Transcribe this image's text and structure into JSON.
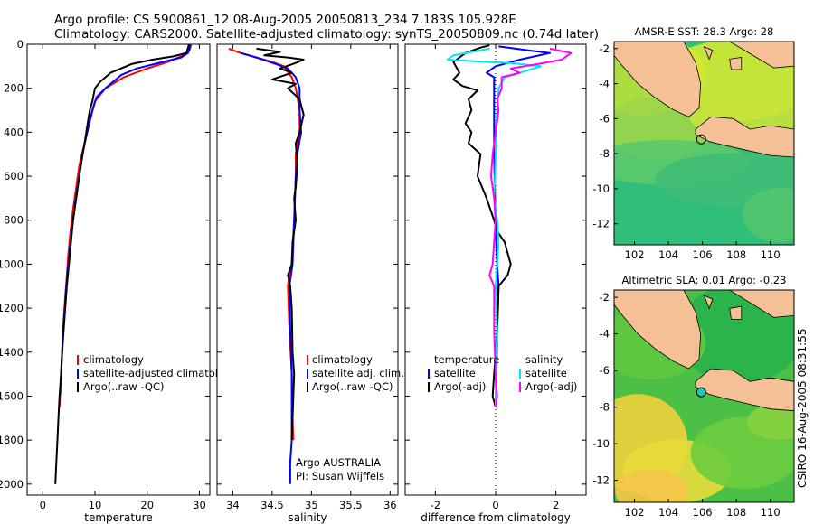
{
  "header": {
    "line1": "Argo profile: CS 5900861_12 08-Aug-2005 20050813_234 7.183S 105.928E",
    "line2": "Climatology: CARS2000. Satellite-adjusted climatology: synTS_20050809.nc (0.74d later)"
  },
  "stamp": "CSIRO 16-Aug-2005 08:31:55",
  "colors": {
    "climatology": "#ff0000",
    "satellite": "#0000ff",
    "argo": "#000000",
    "salinity_satellite": "#00e5ee",
    "salinity_argo": "#ff00ff",
    "land": "#f5c095"
  },
  "chart_data": [
    {
      "type": "line",
      "xlabel": "temperature",
      "ylim": [
        2050,
        0
      ],
      "xlim": [
        -3,
        32
      ],
      "xticks": [
        "0",
        "10",
        "20",
        "30"
      ],
      "yticks": [
        "0",
        "200",
        "400",
        "600",
        "800",
        "1000",
        "1200",
        "1400",
        "1600",
        "1800",
        "2000"
      ],
      "legend_placement": "lower-right",
      "series": [
        {
          "name": "climatology",
          "color": "#ff0000",
          "points": [
            [
              28.4,
              0
            ],
            [
              28.2,
              20
            ],
            [
              27.8,
              40
            ],
            [
              26,
              60
            ],
            [
              24,
              80
            ],
            [
              20,
              110
            ],
            [
              15.5,
              150
            ],
            [
              12,
              200
            ],
            [
              10,
              260
            ],
            [
              9,
              350
            ],
            [
              8,
              450
            ],
            [
              7,
              550
            ],
            [
              6.4,
              650
            ],
            [
              5.8,
              750
            ],
            [
              5.3,
              850
            ],
            [
              4.9,
              950
            ],
            [
              4.6,
              1050
            ],
            [
              4.3,
              1150
            ],
            [
              4,
              1250
            ],
            [
              3.8,
              1350
            ],
            [
              3.6,
              1450
            ],
            [
              3.4,
              1550
            ],
            [
              3.2,
              1650
            ]
          ]
        },
        {
          "name": "satellite-adjusted climatology",
          "color": "#0000ff",
          "points": [
            [
              28.3,
              0
            ],
            [
              28.1,
              20
            ],
            [
              27.8,
              40
            ],
            [
              26.5,
              60
            ],
            [
              23,
              80
            ],
            [
              18,
              110
            ],
            [
              15,
              140
            ],
            [
              12,
              200
            ],
            [
              10.3,
              240
            ],
            [
              9.5,
              300
            ],
            [
              8.5,
              400
            ],
            [
              7.6,
              500
            ],
            [
              7,
              600
            ],
            [
              6.3,
              700
            ],
            [
              5.8,
              800
            ],
            [
              5.3,
              900
            ],
            [
              4.9,
              1000
            ],
            [
              4.5,
              1100
            ],
            [
              4.2,
              1200
            ],
            [
              3.9,
              1300
            ],
            [
              3.7,
              1400
            ],
            [
              3.5,
              1500
            ],
            [
              3.3,
              1600
            ]
          ]
        },
        {
          "name": "Argo(..raw -QC)",
          "color": "#000000",
          "points": [
            [
              28,
              0
            ],
            [
              27.9,
              10
            ],
            [
              27.5,
              40
            ],
            [
              25,
              55
            ],
            [
              21,
              70
            ],
            [
              17,
              90
            ],
            [
              13,
              130
            ],
            [
              11,
              170
            ],
            [
              10,
              200
            ],
            [
              9.5,
              260
            ],
            [
              9,
              300
            ],
            [
              8.6,
              360
            ],
            [
              8,
              450
            ],
            [
              7.5,
              520
            ],
            [
              7,
              600
            ],
            [
              6.4,
              700
            ],
            [
              5.8,
              800
            ],
            [
              5.4,
              900
            ],
            [
              5,
              1000
            ],
            [
              4.6,
              1100
            ],
            [
              4.3,
              1200
            ],
            [
              4,
              1300
            ],
            [
              3.7,
              1400
            ],
            [
              3.5,
              1500
            ],
            [
              3.2,
              1600
            ],
            [
              3,
              1700
            ],
            [
              2.8,
              1800
            ],
            [
              2.6,
              1900
            ],
            [
              2.4,
              2000
            ]
          ]
        }
      ]
    },
    {
      "type": "line",
      "xlabel": "salinity",
      "ylim": [
        2050,
        0
      ],
      "xlim": [
        33.8,
        36.1
      ],
      "xticks": [
        "34",
        "34.5",
        "35",
        "35.5",
        "36"
      ],
      "legend_placement": "lower-right",
      "annotation": [
        "Argo AUSTRALIA",
        "PI: Susan Wijffels"
      ],
      "series": [
        {
          "name": "climatology",
          "color": "#ff0000",
          "points": [
            [
              33.95,
              20
            ],
            [
              34.1,
              40
            ],
            [
              34.3,
              60
            ],
            [
              34.5,
              80
            ],
            [
              34.65,
              100
            ],
            [
              34.75,
              150
            ],
            [
              34.8,
              200
            ],
            [
              34.85,
              300
            ],
            [
              34.85,
              400
            ],
            [
              34.8,
              500
            ],
            [
              34.8,
              600
            ],
            [
              34.78,
              800
            ],
            [
              34.75,
              1000
            ],
            [
              34.72,
              1050
            ],
            [
              34.7,
              1100
            ],
            [
              34.72,
              1300
            ],
            [
              34.75,
              1500
            ],
            [
              34.76,
              1700
            ],
            [
              34.77,
              1800
            ]
          ]
        },
        {
          "name": "satellite adj. clim.",
          "color": "#0000ff",
          "points": [
            [
              34.1,
              40
            ],
            [
              34.3,
              60
            ],
            [
              34.55,
              90
            ],
            [
              34.7,
              110
            ],
            [
              34.8,
              150
            ],
            [
              34.85,
              200
            ],
            [
              34.85,
              300
            ],
            [
              34.87,
              400
            ],
            [
              34.82,
              500
            ],
            [
              34.8,
              600
            ],
            [
              34.78,
              800
            ],
            [
              34.76,
              1000
            ],
            [
              34.72,
              1100
            ],
            [
              34.73,
              1300
            ],
            [
              34.75,
              1500
            ],
            [
              34.75,
              1700
            ],
            [
              34.75,
              1800
            ],
            [
              34.73,
              1900
            ],
            [
              34.73,
              2000
            ]
          ]
        },
        {
          "name": "Argo(..raw -QC)",
          "color": "#000000",
          "points": [
            [
              34.3,
              20
            ],
            [
              34.6,
              35
            ],
            [
              34.4,
              50
            ],
            [
              34.7,
              60
            ],
            [
              34.9,
              70
            ],
            [
              34.8,
              85
            ],
            [
              34.6,
              110
            ],
            [
              34.75,
              130
            ],
            [
              34.5,
              160
            ],
            [
              34.8,
              180
            ],
            [
              34.7,
              200
            ],
            [
              34.85,
              250
            ],
            [
              34.9,
              320
            ],
            [
              34.85,
              400
            ],
            [
              34.8,
              450
            ],
            [
              34.82,
              550
            ],
            [
              34.8,
              650
            ],
            [
              34.78,
              700
            ],
            [
              34.8,
              800
            ],
            [
              34.76,
              900
            ],
            [
              34.75,
              1000
            ],
            [
              34.7,
              1050
            ],
            [
              34.73,
              1100
            ],
            [
              34.75,
              1200
            ],
            [
              34.76,
              1400
            ],
            [
              34.78,
              1500
            ],
            [
              34.77,
              1600
            ],
            [
              34.76,
              1700
            ],
            [
              34.75,
              1800
            ]
          ]
        }
      ]
    },
    {
      "type": "line",
      "xlabel": "difference from climatology",
      "ylim": [
        2050,
        0
      ],
      "xlim": [
        -3,
        3
      ],
      "xticks": [
        "-2",
        "0",
        "2"
      ],
      "zero_line": "dotted",
      "legend_placement": "lower-center",
      "legend_temperature_header": "temperature",
      "legend_salinity_header": "salinity",
      "legend_temperature_entries": [
        "satellite",
        "Argo(-adj)"
      ],
      "legend_salinity_entries": [
        "satellite",
        "Argo(-adj)"
      ],
      "series": [
        {
          "name": "temperature satellite",
          "color": "#0000ff",
          "points": [
            [
              0.1,
              10
            ],
            [
              1.2,
              30
            ],
            [
              1.8,
              40
            ],
            [
              0.8,
              70
            ],
            [
              0,
              100
            ],
            [
              -0.3,
              130
            ],
            [
              -0.05,
              150
            ],
            [
              -0.05,
              300
            ],
            [
              -0.05,
              500
            ],
            [
              -0.02,
              700
            ],
            [
              0,
              800
            ],
            [
              0.02,
              900
            ],
            [
              0.05,
              1000
            ],
            [
              0.1,
              1100
            ],
            [
              0.08,
              1200
            ],
            [
              0.05,
              1300
            ],
            [
              0.03,
              1500
            ],
            [
              0.02,
              1650
            ]
          ]
        },
        {
          "name": "temperature Argo(-adj)",
          "color": "#000000",
          "points": [
            [
              -0.2,
              5
            ],
            [
              -0.5,
              15
            ],
            [
              -1,
              40
            ],
            [
              -1.4,
              80
            ],
            [
              -1.2,
              130
            ],
            [
              -1.4,
              160
            ],
            [
              -1.1,
              190
            ],
            [
              -0.6,
              210
            ],
            [
              -0.9,
              250
            ],
            [
              -0.8,
              300
            ],
            [
              -1,
              360
            ],
            [
              -0.8,
              400
            ],
            [
              -0.9,
              450
            ],
            [
              -0.5,
              500
            ],
            [
              -0.6,
              600
            ],
            [
              -0.3,
              700
            ],
            [
              -0.05,
              800
            ],
            [
              0.05,
              850
            ],
            [
              0.3,
              900
            ],
            [
              0.4,
              950
            ],
            [
              0.5,
              1000
            ],
            [
              0.4,
              1050
            ],
            [
              0.1,
              1100
            ],
            [
              0.05,
              1300
            ],
            [
              -0.05,
              1500
            ],
            [
              -0.1,
              1600
            ],
            [
              0,
              1650
            ]
          ]
        },
        {
          "name": "salinity satellite",
          "color": "#00e5ee",
          "points": [
            [
              -0.2,
              20
            ],
            [
              -1.4,
              50
            ],
            [
              -1.6,
              70
            ],
            [
              -1.0,
              75
            ],
            [
              0.5,
              85
            ],
            [
              1.5,
              100
            ],
            [
              0.8,
              130
            ],
            [
              0.3,
              150
            ],
            [
              0.1,
              200
            ],
            [
              0.05,
              300
            ],
            [
              0,
              400
            ],
            [
              0,
              500
            ],
            [
              -0.02,
              600
            ],
            [
              -0.05,
              700
            ],
            [
              0.05,
              800
            ],
            [
              0.1,
              900
            ],
            [
              0.05,
              1000
            ],
            [
              0,
              1100
            ],
            [
              0.02,
              1200
            ],
            [
              0.05,
              1300
            ],
            [
              0.02,
              1400
            ],
            [
              0,
              1500
            ],
            [
              0,
              1650
            ]
          ]
        },
        {
          "name": "salinity Argo(-adj)",
          "color": "#ff00ff",
          "points": [
            [
              1.8,
              20
            ],
            [
              2.5,
              40
            ],
            [
              2.2,
              70
            ],
            [
              1.4,
              90
            ],
            [
              0.5,
              110
            ],
            [
              0.8,
              130
            ],
            [
              0.2,
              150
            ],
            [
              0.2,
              200
            ],
            [
              0.05,
              250
            ],
            [
              0.1,
              300
            ],
            [
              0,
              400
            ],
            [
              -0.1,
              500
            ],
            [
              -0.15,
              600
            ],
            [
              -0.05,
              700
            ],
            [
              0,
              800
            ],
            [
              -0.05,
              900
            ],
            [
              -0.1,
              1000
            ],
            [
              -0.2,
              1050
            ],
            [
              -0.05,
              1100
            ],
            [
              -0.05,
              1300
            ],
            [
              0,
              1500
            ],
            [
              0.05,
              1600
            ],
            [
              0,
              1650
            ]
          ]
        }
      ]
    },
    {
      "type": "heatmap",
      "title": "AMSR-E SST: 28.3 Argo: 28",
      "xlim": [
        100.8,
        111.4
      ],
      "ylim": [
        -13.2,
        -1.6
      ],
      "xticks": [
        "102",
        "104",
        "106",
        "108",
        "110"
      ],
      "yticks": [
        "-2",
        "-4",
        "-6",
        "-8",
        "-10",
        "-12"
      ],
      "marker": [
        105.928,
        -7.183
      ],
      "colormap": "green-yellow"
    },
    {
      "type": "heatmap",
      "title": "Altimetric SLA: 0.01 Argo: -0.23",
      "xlim": [
        100.8,
        111.4
      ],
      "ylim": [
        -13.2,
        -1.6
      ],
      "xticks": [
        "102",
        "104",
        "106",
        "108",
        "110"
      ],
      "yticks": [
        "-2",
        "-4",
        "-6",
        "-8",
        "-10",
        "-12"
      ],
      "marker": [
        105.928,
        -7.183
      ],
      "colormap": "green-yellow-orange"
    }
  ]
}
